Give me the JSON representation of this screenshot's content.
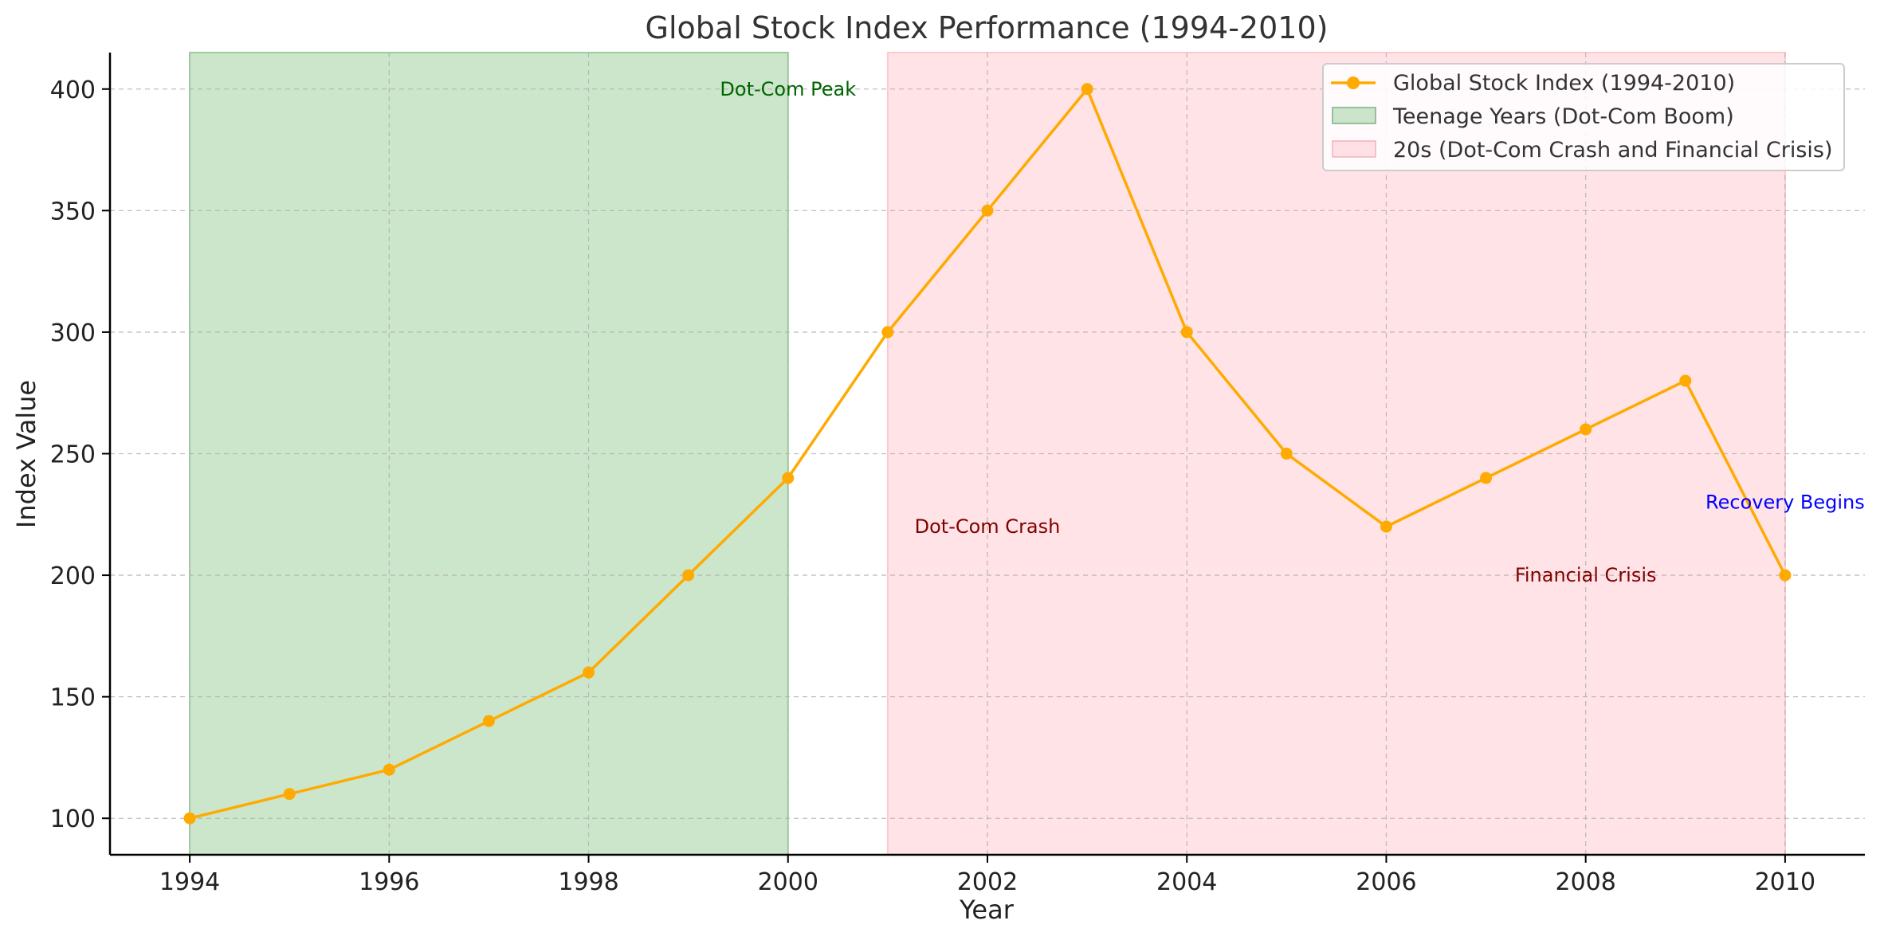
{
  "chart_data": {
    "type": "line",
    "title": "Global Stock Index Performance (1994-2010)",
    "xlabel": "Year",
    "ylabel": "Index Value",
    "xlim": [
      1993.2,
      2010.8
    ],
    "ylim": [
      85,
      415
    ],
    "xticks": [
      1994,
      1996,
      1998,
      2000,
      2002,
      2004,
      2006,
      2008,
      2010
    ],
    "yticks": [
      100,
      150,
      200,
      250,
      300,
      350,
      400
    ],
    "grid": true,
    "legend_position": "top-right",
    "series": [
      {
        "name": "Global Stock Index (1994-2010)",
        "color": "#FFAA00",
        "x": [
          1994,
          1995,
          1996,
          1997,
          1998,
          1999,
          2000,
          2001,
          2002,
          2003,
          2004,
          2005,
          2006,
          2007,
          2008,
          2009,
          2010
        ],
        "y": [
          100,
          110,
          120,
          140,
          160,
          200,
          240,
          300,
          350,
          400,
          300,
          250,
          220,
          240,
          260,
          280,
          200
        ]
      }
    ],
    "spans": [
      {
        "name": "Teenage Years (Dot-Com Boom)",
        "x_start": 1994,
        "x_end": 2000,
        "color": "#9ACD9A"
      },
      {
        "name": "20s (Dot-Com Crash and Financial Crisis)",
        "x_start": 2001,
        "x_end": 2010,
        "color": "#FFC8CD"
      }
    ],
    "annotations": [
      {
        "text": "Dot-Com Peak",
        "x": 2000,
        "y": 400,
        "color": "#006400"
      },
      {
        "text": "Dot-Com Crash",
        "x": 2002,
        "y": 220,
        "color": "#800000"
      },
      {
        "text": "Financial Crisis",
        "x": 2008,
        "y": 200,
        "color": "#800000"
      },
      {
        "text": "Recovery Begins",
        "x": 2010,
        "y": 230,
        "color": "#0000FF"
      }
    ]
  }
}
